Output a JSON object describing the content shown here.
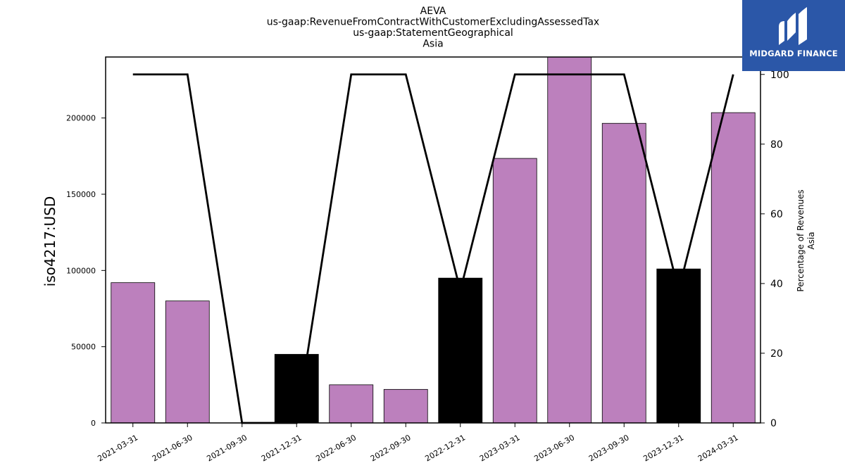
{
  "chart_data": {
    "type": "bar",
    "title_lines": [
      "AEVA",
      "us-gaap:RevenueFromContractWithCustomerExcludingAssessedTax",
      "us-gaap:StatementGeographical",
      "Asia"
    ],
    "ylabel": "iso4217:USD",
    "y2label_lines": [
      "Percentage of Revenues",
      "Asia"
    ],
    "categories": [
      "2021-03-31",
      "2021-06-30",
      "2021-09-30",
      "2021-12-31",
      "2022-06-30",
      "2022-09-30",
      "2022-12-31",
      "2023-03-31",
      "2023-06-30",
      "2023-09-30",
      "2023-12-31",
      "2024-03-31"
    ],
    "series": [
      {
        "values": [
          92000,
          80000,
          0,
          45000,
          25000,
          22000,
          95000,
          173500,
          240000,
          196500,
          101000,
          203500
        ],
        "bar_colors": [
          "#bc80bd",
          "#bc80bd",
          "#bc80bd",
          "#000000",
          "#bc80bd",
          "#bc80bd",
          "#000000",
          "#bc80bd",
          "#bc80bd",
          "#bc80bd",
          "#000000",
          "#bc80bd"
        ]
      },
      {
        "axis": "right",
        "type": "line",
        "color": "#000000",
        "values": [
          100,
          100,
          0,
          0,
          100,
          100,
          38,
          100,
          100,
          100,
          38,
          100
        ]
      }
    ],
    "ylim": [
      0,
      240000
    ],
    "y_ticks": [
      0,
      50000,
      100000,
      150000,
      200000
    ],
    "y_tick_labels": [
      "0",
      "50000",
      "100000",
      "150000",
      "200000"
    ],
    "y2lim": [
      0,
      105
    ],
    "y2_ticks": [
      0,
      20,
      40,
      60,
      80,
      100
    ],
    "y2_tick_labels": [
      "0",
      "20",
      "40",
      "60",
      "80",
      "100"
    ],
    "grid": false
  },
  "logo": {
    "text": "MIDGARD FINANCE",
    "bg_color": "#2b57a8"
  }
}
